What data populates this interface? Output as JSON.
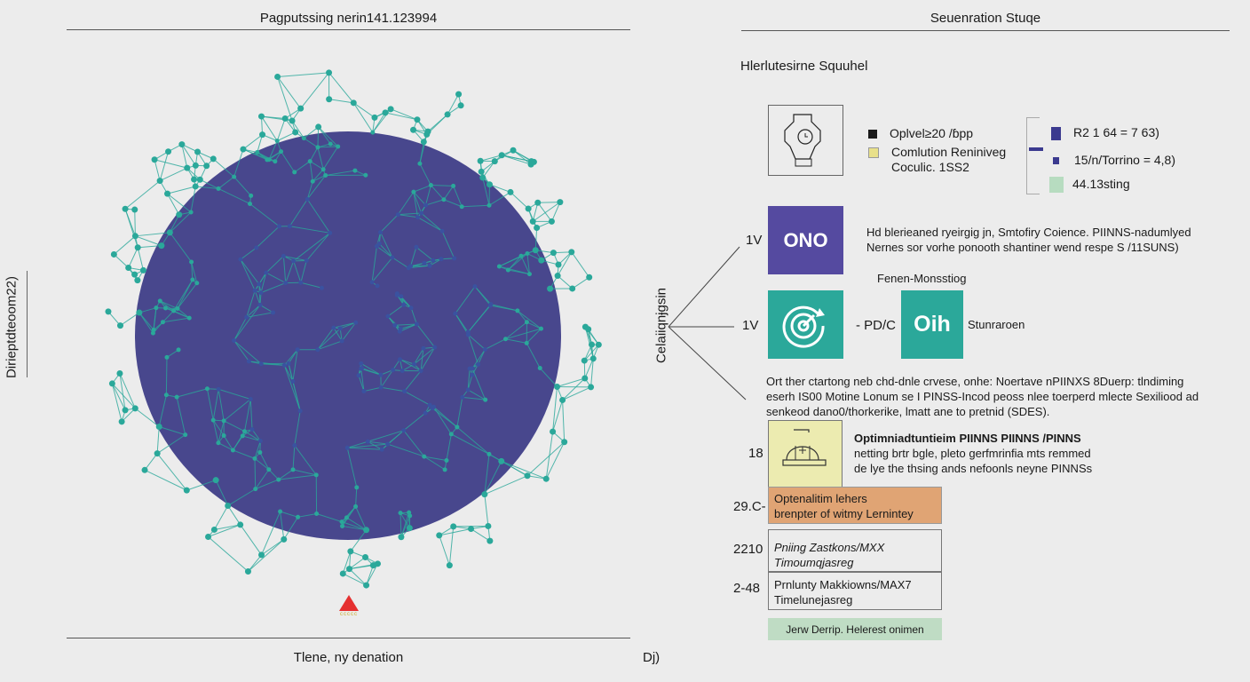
{
  "left_panel": {
    "title": "Pagputssing nerin141.123994",
    "y_axis_label": "Dirieptdteoom22)",
    "x_axis_label": "Tlene, ny denation",
    "marker_label": "ccccc",
    "colors": {
      "node": "#2aa89a",
      "core": "#2b2a7c",
      "marker": "#e53030"
    }
  },
  "right_panel": {
    "title": "Seuenration Stuqe",
    "section_title": "Hlerlutesirne Squuhel",
    "legend": [
      {
        "label": "Oplvel≥20 /ɓpp",
        "color": "#1a1a1a"
      },
      {
        "label": "Comlution Reniniveg\nCoculic. 1SS2",
        "color": "#e8e08a"
      }
    ],
    "bracket_items": [
      {
        "label": "R2 1 64 = 7 63)",
        "color": "#3b3a8f"
      },
      {
        "label": "15/n/Torrino = 4,8)",
        "color": "#3b3a8f"
      },
      {
        "label": "44.13sting",
        "color": "#b7dcc0"
      }
    ],
    "tree_label": "Celaiiqnɉgsin",
    "row1": {
      "level": "1V",
      "box_text": "ONO",
      "color": "#554aa0",
      "description": "Hd blerieaned ryeirgig jn, Smtofiry Coience. PIINNS-nadumlyed\nNernes sor vorhe ponooth shantiner wend respe S /11SUNS)"
    },
    "subheading": "Fenen-Monsstiog",
    "row2": {
      "level": "1V",
      "icon": "target-icon",
      "color": "#2ba89a",
      "connector": "- PD/C",
      "box2_text": "Oih",
      "side_label": "Stunraroen"
    },
    "paragraph": "Ort ther ctartong neb chd-dnle crvese, onhe: Noertave nPIINXS 8Duerp: tlndiming\neserh IS00 Motine Lonum se I PINSS-Incod peoss nlee toerperd mlecte Sexiliood ad\nsenkeod dano0/thorkerike, lmatt ane to pretnid (SDES).",
    "row3": {
      "level": "18",
      "icon": "helmet-icon",
      "color": "#ecebb0",
      "title": "Optimniadtuntieim PIINNS PIINNS /PINNS",
      "description": "netting brtr bgle, pleto gerfmrinfia mts remmed\nde lye the thsing ands nefoonls neyne PINNSs"
    },
    "stack": [
      {
        "level": "29.C-",
        "text": "Optenalitim lehers\nbrenpter of witmy Lernintey",
        "color": "#e0a474"
      },
      {
        "level": "2210",
        "text": "Pniing Zastkons/MXX\nTimoumqjasreg",
        "color": "#ececec"
      },
      {
        "level": "2-48",
        "text": "Prnlunty Makkiowns/MAX7\nTimelunejasreg",
        "color": "#ececec"
      }
    ],
    "footer_button": {
      "label": "Jerw Derrip. Helerest onimen",
      "color": "#bfdcc4"
    },
    "bottom_label": "Dj)"
  }
}
